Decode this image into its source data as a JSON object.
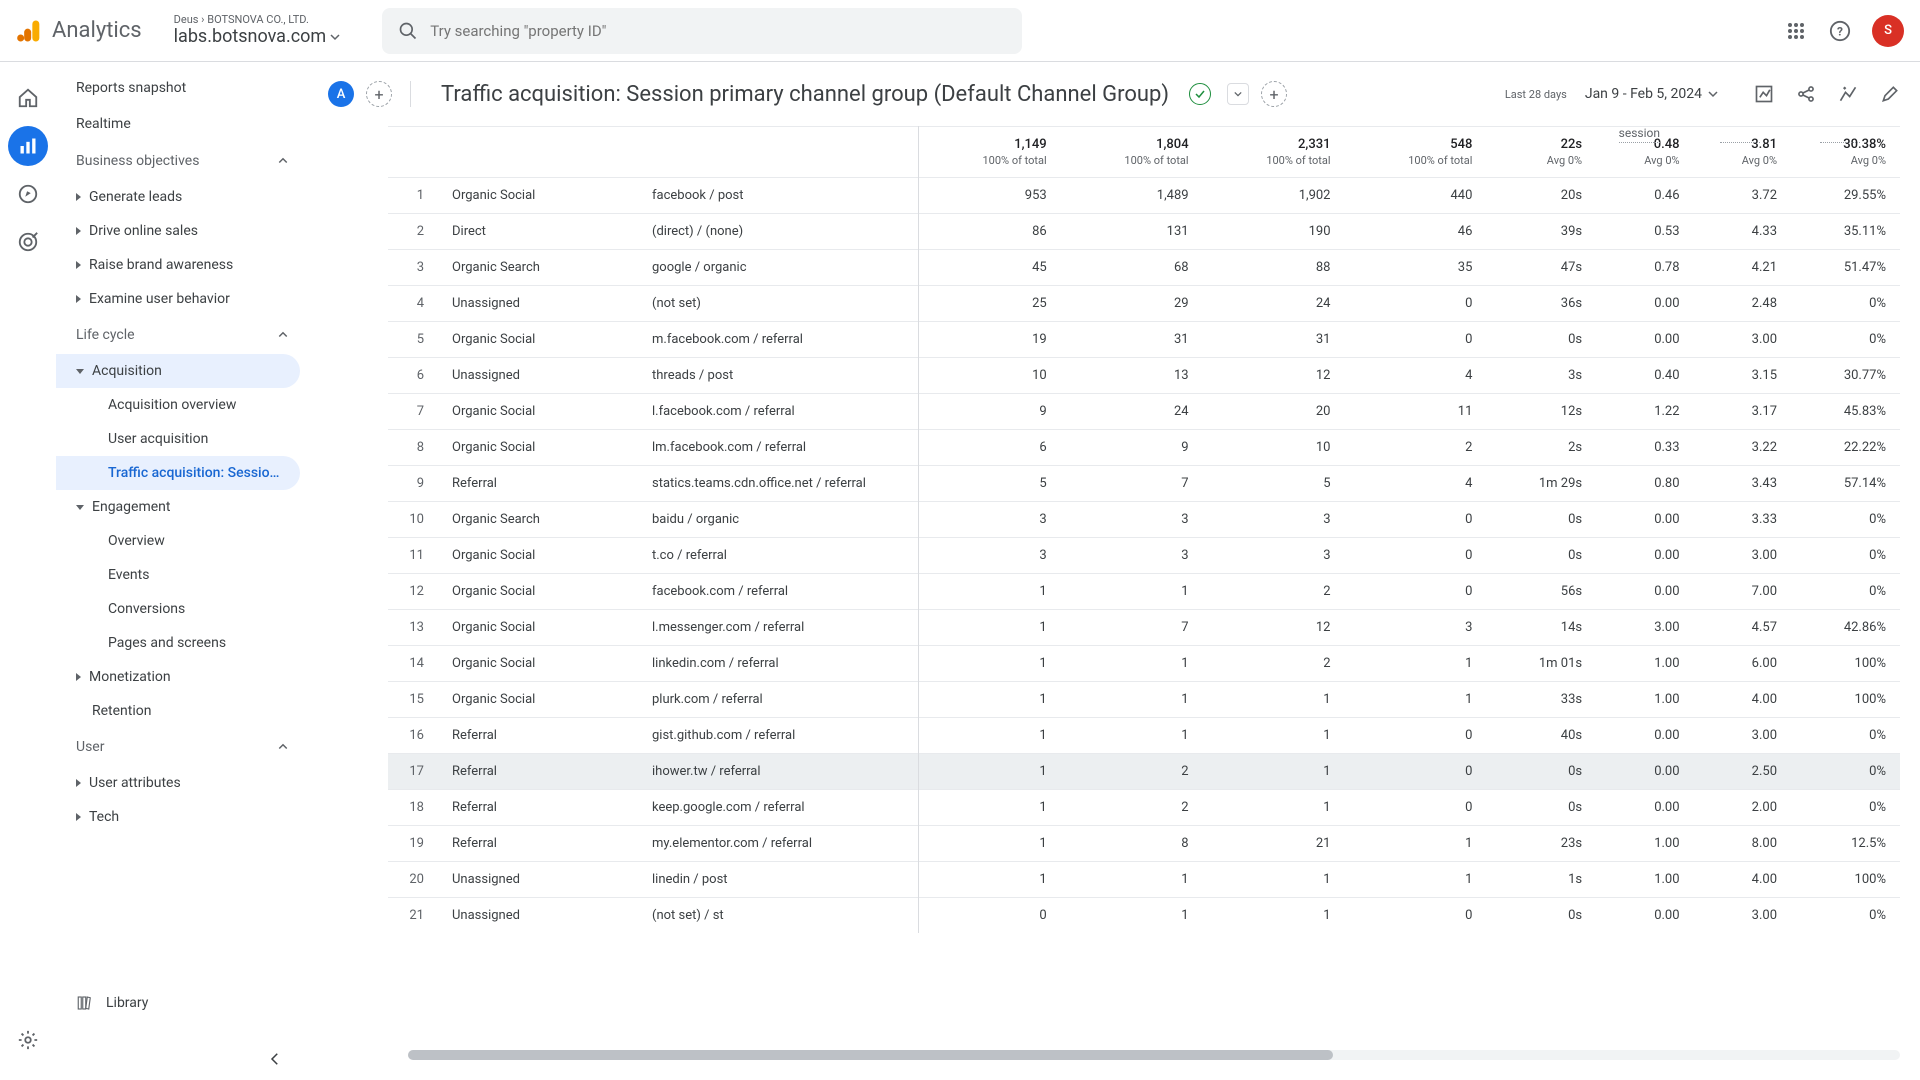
{
  "brand": "Analytics",
  "breadcrumb": {
    "top": "Deus › BOTSNOVA CO., LTD.",
    "bottom": "labs.botsnova.com"
  },
  "search": {
    "placeholder": "Try searching \"property ID\""
  },
  "avatar_letter": "S",
  "avatar_bg": "#d93025",
  "sidebar": {
    "snapshot": "Reports snapshot",
    "realtime": "Realtime",
    "business": "Business objectives",
    "biz_items": [
      "Generate leads",
      "Drive online sales",
      "Raise brand awareness",
      "Examine user behavior"
    ],
    "lifecycle": "Life cycle",
    "acquisition": "Acquisition",
    "acq_items": [
      "Acquisition overview",
      "User acquisition",
      "Traffic acquisition: Session..."
    ],
    "engagement": "Engagement",
    "eng_items": [
      "Overview",
      "Events",
      "Conversions",
      "Pages and screens"
    ],
    "monetization": "Monetization",
    "retention": "Retention",
    "user": "User",
    "user_items": [
      "User attributes",
      "Tech"
    ],
    "library": "Library"
  },
  "report": {
    "badge": "A",
    "title": "Traffic acquisition: Session primary channel group (Default Channel Group)",
    "date_label": "Last 28 days",
    "date_range": "Jan 9 - Feb 5, 2024"
  },
  "partial_header": {
    "session_label": "session"
  },
  "totals": {
    "c1": "1,149",
    "c1s": "100% of total",
    "c2": "1,804",
    "c2s": "100% of total",
    "c3": "2,331",
    "c3s": "100% of total",
    "c4": "548",
    "c4s": "100% of total",
    "c5": "22s",
    "c5s": "Avg 0%",
    "c6": "0.48",
    "c6s": "Avg 0%",
    "c7": "3.81",
    "c7s": "Avg 0%",
    "c8": "30.38%",
    "c8s": "Avg 0%"
  },
  "rows": [
    {
      "n": "1",
      "ch": "Organic Social",
      "src": "facebook / post",
      "c1": "953",
      "c2": "1,489",
      "c3": "1,902",
      "c4": "440",
      "c5": "20s",
      "c6": "0.46",
      "c7": "3.72",
      "c8": "29.55%"
    },
    {
      "n": "2",
      "ch": "Direct",
      "src": "(direct) / (none)",
      "c1": "86",
      "c2": "131",
      "c3": "190",
      "c4": "46",
      "c5": "39s",
      "c6": "0.53",
      "c7": "4.33",
      "c8": "35.11%"
    },
    {
      "n": "3",
      "ch": "Organic Search",
      "src": "google / organic",
      "c1": "45",
      "c2": "68",
      "c3": "88",
      "c4": "35",
      "c5": "47s",
      "c6": "0.78",
      "c7": "4.21",
      "c8": "51.47%"
    },
    {
      "n": "4",
      "ch": "Unassigned",
      "src": "(not set)",
      "c1": "25",
      "c2": "29",
      "c3": "24",
      "c4": "0",
      "c5": "36s",
      "c6": "0.00",
      "c7": "2.48",
      "c8": "0%"
    },
    {
      "n": "5",
      "ch": "Organic Social",
      "src": "m.facebook.com / referral",
      "c1": "19",
      "c2": "31",
      "c3": "31",
      "c4": "0",
      "c5": "0s",
      "c6": "0.00",
      "c7": "3.00",
      "c8": "0%"
    },
    {
      "n": "6",
      "ch": "Unassigned",
      "src": "threads / post",
      "c1": "10",
      "c2": "13",
      "c3": "12",
      "c4": "4",
      "c5": "3s",
      "c6": "0.40",
      "c7": "3.15",
      "c8": "30.77%"
    },
    {
      "n": "7",
      "ch": "Organic Social",
      "src": "l.facebook.com / referral",
      "c1": "9",
      "c2": "24",
      "c3": "20",
      "c4": "11",
      "c5": "12s",
      "c6": "1.22",
      "c7": "3.17",
      "c8": "45.83%"
    },
    {
      "n": "8",
      "ch": "Organic Social",
      "src": "lm.facebook.com / referral",
      "c1": "6",
      "c2": "9",
      "c3": "10",
      "c4": "2",
      "c5": "2s",
      "c6": "0.33",
      "c7": "3.22",
      "c8": "22.22%"
    },
    {
      "n": "9",
      "ch": "Referral",
      "src": "statics.teams.cdn.office.net / referral",
      "c1": "5",
      "c2": "7",
      "c3": "5",
      "c4": "4",
      "c5": "1m 29s",
      "c6": "0.80",
      "c7": "3.43",
      "c8": "57.14%"
    },
    {
      "n": "10",
      "ch": "Organic Search",
      "src": "baidu / organic",
      "c1": "3",
      "c2": "3",
      "c3": "3",
      "c4": "0",
      "c5": "0s",
      "c6": "0.00",
      "c7": "3.33",
      "c8": "0%"
    },
    {
      "n": "11",
      "ch": "Organic Social",
      "src": "t.co / referral",
      "c1": "3",
      "c2": "3",
      "c3": "3",
      "c4": "0",
      "c5": "0s",
      "c6": "0.00",
      "c7": "3.00",
      "c8": "0%"
    },
    {
      "n": "12",
      "ch": "Organic Social",
      "src": "facebook.com / referral",
      "c1": "1",
      "c2": "1",
      "c3": "2",
      "c4": "0",
      "c5": "56s",
      "c6": "0.00",
      "c7": "7.00",
      "c8": "0%"
    },
    {
      "n": "13",
      "ch": "Organic Social",
      "src": "l.messenger.com / referral",
      "c1": "1",
      "c2": "7",
      "c3": "12",
      "c4": "3",
      "c5": "14s",
      "c6": "3.00",
      "c7": "4.57",
      "c8": "42.86%"
    },
    {
      "n": "14",
      "ch": "Organic Social",
      "src": "linkedin.com / referral",
      "c1": "1",
      "c2": "1",
      "c3": "2",
      "c4": "1",
      "c5": "1m 01s",
      "c6": "1.00",
      "c7": "6.00",
      "c8": "100%"
    },
    {
      "n": "15",
      "ch": "Organic Social",
      "src": "plurk.com / referral",
      "c1": "1",
      "c2": "1",
      "c3": "1",
      "c4": "1",
      "c5": "33s",
      "c6": "1.00",
      "c7": "4.00",
      "c8": "100%"
    },
    {
      "n": "16",
      "ch": "Referral",
      "src": "gist.github.com / referral",
      "c1": "1",
      "c2": "1",
      "c3": "1",
      "c4": "0",
      "c5": "40s",
      "c6": "0.00",
      "c7": "3.00",
      "c8": "0%"
    },
    {
      "n": "17",
      "ch": "Referral",
      "src": "ihower.tw / referral",
      "c1": "1",
      "c2": "2",
      "c3": "1",
      "c4": "0",
      "c5": "0s",
      "c6": "0.00",
      "c7": "2.50",
      "c8": "0%"
    },
    {
      "n": "18",
      "ch": "Referral",
      "src": "keep.google.com / referral",
      "c1": "1",
      "c2": "2",
      "c3": "1",
      "c4": "0",
      "c5": "0s",
      "c6": "0.00",
      "c7": "2.00",
      "c8": "0%"
    },
    {
      "n": "19",
      "ch": "Referral",
      "src": "my.elementor.com / referral",
      "c1": "1",
      "c2": "8",
      "c3": "21",
      "c4": "1",
      "c5": "23s",
      "c6": "1.00",
      "c7": "8.00",
      "c8": "12.5%"
    },
    {
      "n": "20",
      "ch": "Unassigned",
      "src": "linedin / post",
      "c1": "1",
      "c2": "1",
      "c3": "1",
      "c4": "1",
      "c5": "1s",
      "c6": "1.00",
      "c7": "4.00",
      "c8": "100%"
    },
    {
      "n": "21",
      "ch": "Unassigned",
      "src": "(not set) / st",
      "c1": "0",
      "c2": "1",
      "c3": "1",
      "c4": "0",
      "c5": "0s",
      "c6": "0.00",
      "c7": "3.00",
      "c8": "0%"
    }
  ],
  "colors": {
    "primary": "#1a73e8",
    "text": "#3c4043",
    "muted": "#5f6368",
    "border": "#dadce0",
    "row_border": "#e8eaed",
    "hover": "#f1f3f4",
    "selected_bg": "#e8f0fe",
    "selected_fg": "#1967d2"
  }
}
